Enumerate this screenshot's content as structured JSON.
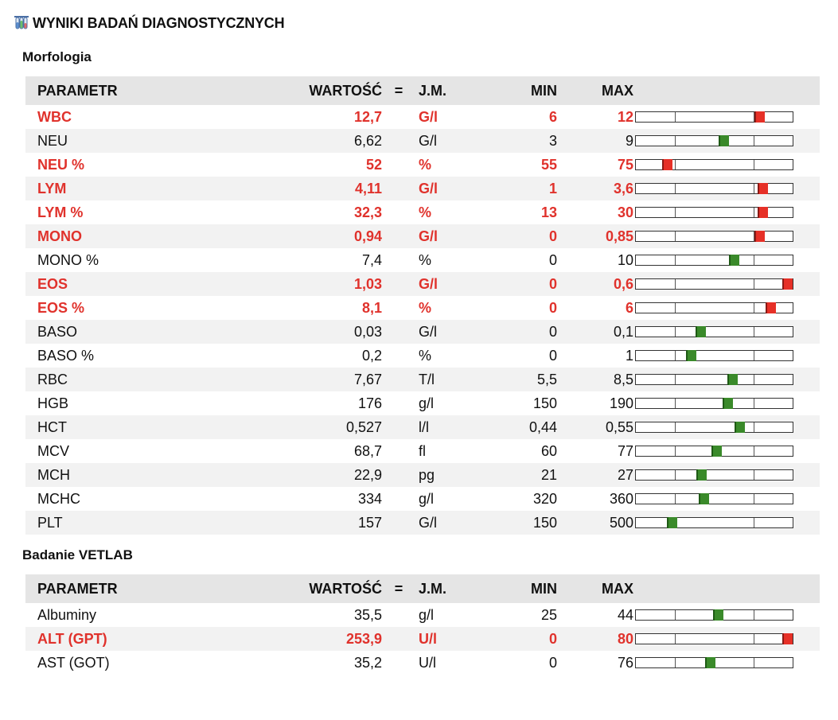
{
  "page": {
    "title": "WYNIKI BADAŃ DIAGNOSTYCZNYCH",
    "icon": "test-tubes-icon"
  },
  "colors": {
    "abnormal_text": "#e0322c",
    "marker_ok": "#3a8a2a",
    "marker_bad": "#e63027",
    "header_bg": "#e5e5e5",
    "stripe_bg": "#f2f2f2"
  },
  "headers": {
    "param": "PARAMETR",
    "value": "WARTOŚĆ",
    "eq": "=",
    "unit": "J.M.",
    "min": "MIN",
    "max": "MAX"
  },
  "sections": [
    {
      "title": "Morfologia",
      "rows": [
        {
          "param": "WBC",
          "value": "12,7",
          "unit": "G/l",
          "min": "6",
          "max": "12",
          "abnormal": true,
          "marker_position": 0.78
        },
        {
          "param": "NEU",
          "value": "6,62",
          "unit": "G/l",
          "min": "3",
          "max": "9",
          "abnormal": false,
          "marker_position": 0.555
        },
        {
          "param": "NEU %",
          "value": "52",
          "unit": "%",
          "min": "55",
          "max": "75",
          "abnormal": true,
          "marker_position": 0.2
        },
        {
          "param": "LYM",
          "value": "4,11",
          "unit": "G/l",
          "min": "1",
          "max": "3,6",
          "abnormal": true,
          "marker_position": 0.8
        },
        {
          "param": "LYM %",
          "value": "32,3",
          "unit": "%",
          "min": "13",
          "max": "30",
          "abnormal": true,
          "marker_position": 0.8
        },
        {
          "param": "MONO",
          "value": "0,94",
          "unit": "G/l",
          "min": "0",
          "max": "0,85",
          "abnormal": true,
          "marker_position": 0.78
        },
        {
          "param": "MONO %",
          "value": "7,4",
          "unit": "%",
          "min": "0",
          "max": "10",
          "abnormal": false,
          "marker_position": 0.62
        },
        {
          "param": "EOS",
          "value": "1,03",
          "unit": "G/l",
          "min": "0",
          "max": "0,6",
          "abnormal": true,
          "marker_position": 0.96
        },
        {
          "param": "EOS %",
          "value": "8,1",
          "unit": "%",
          "min": "0",
          "max": "6",
          "abnormal": true,
          "marker_position": 0.85
        },
        {
          "param": "BASO",
          "value": "0,03",
          "unit": "G/l",
          "min": "0",
          "max": "0,1",
          "abnormal": false,
          "marker_position": 0.41
        },
        {
          "param": "BASO %",
          "value": "0,2",
          "unit": "%",
          "min": "0",
          "max": "1",
          "abnormal": false,
          "marker_position": 0.35
        },
        {
          "param": "RBC",
          "value": "7,67",
          "unit": "T/l",
          "min": "5,5",
          "max": "8,5",
          "abnormal": false,
          "marker_position": 0.61
        },
        {
          "param": "HGB",
          "value": "176",
          "unit": "g/l",
          "min": "150",
          "max": "190",
          "abnormal": false,
          "marker_position": 0.58
        },
        {
          "param": "HCT",
          "value": "0,527",
          "unit": "l/l",
          "min": "0,44",
          "max": "0,55",
          "abnormal": false,
          "marker_position": 0.655
        },
        {
          "param": "MCV",
          "value": "68,7",
          "unit": "fl",
          "min": "60",
          "max": "77",
          "abnormal": false,
          "marker_position": 0.51
        },
        {
          "param": "MCH",
          "value": "22,9",
          "unit": "pg",
          "min": "21",
          "max": "27",
          "abnormal": false,
          "marker_position": 0.415
        },
        {
          "param": "MCHC",
          "value": "334",
          "unit": "g/l",
          "min": "320",
          "max": "360",
          "abnormal": false,
          "marker_position": 0.43
        },
        {
          "param": "PLT",
          "value": "157",
          "unit": "G/l",
          "min": "150",
          "max": "500",
          "abnormal": false,
          "marker_position": 0.23
        }
      ]
    },
    {
      "title": "Badanie VETLAB",
      "rows": [
        {
          "param": "Albuminy",
          "value": "35,5",
          "unit": "g/l",
          "min": "25",
          "max": "44",
          "abnormal": false,
          "marker_position": 0.52
        },
        {
          "param": "ALT (GPT)",
          "value": "253,9",
          "unit": "U/l",
          "min": "0",
          "max": "80",
          "abnormal": true,
          "marker_position": 0.96
        },
        {
          "param": "AST (GOT)",
          "value": "35,2",
          "unit": "U/l",
          "min": "0",
          "max": "76",
          "abnormal": false,
          "marker_position": 0.47
        }
      ]
    }
  ]
}
